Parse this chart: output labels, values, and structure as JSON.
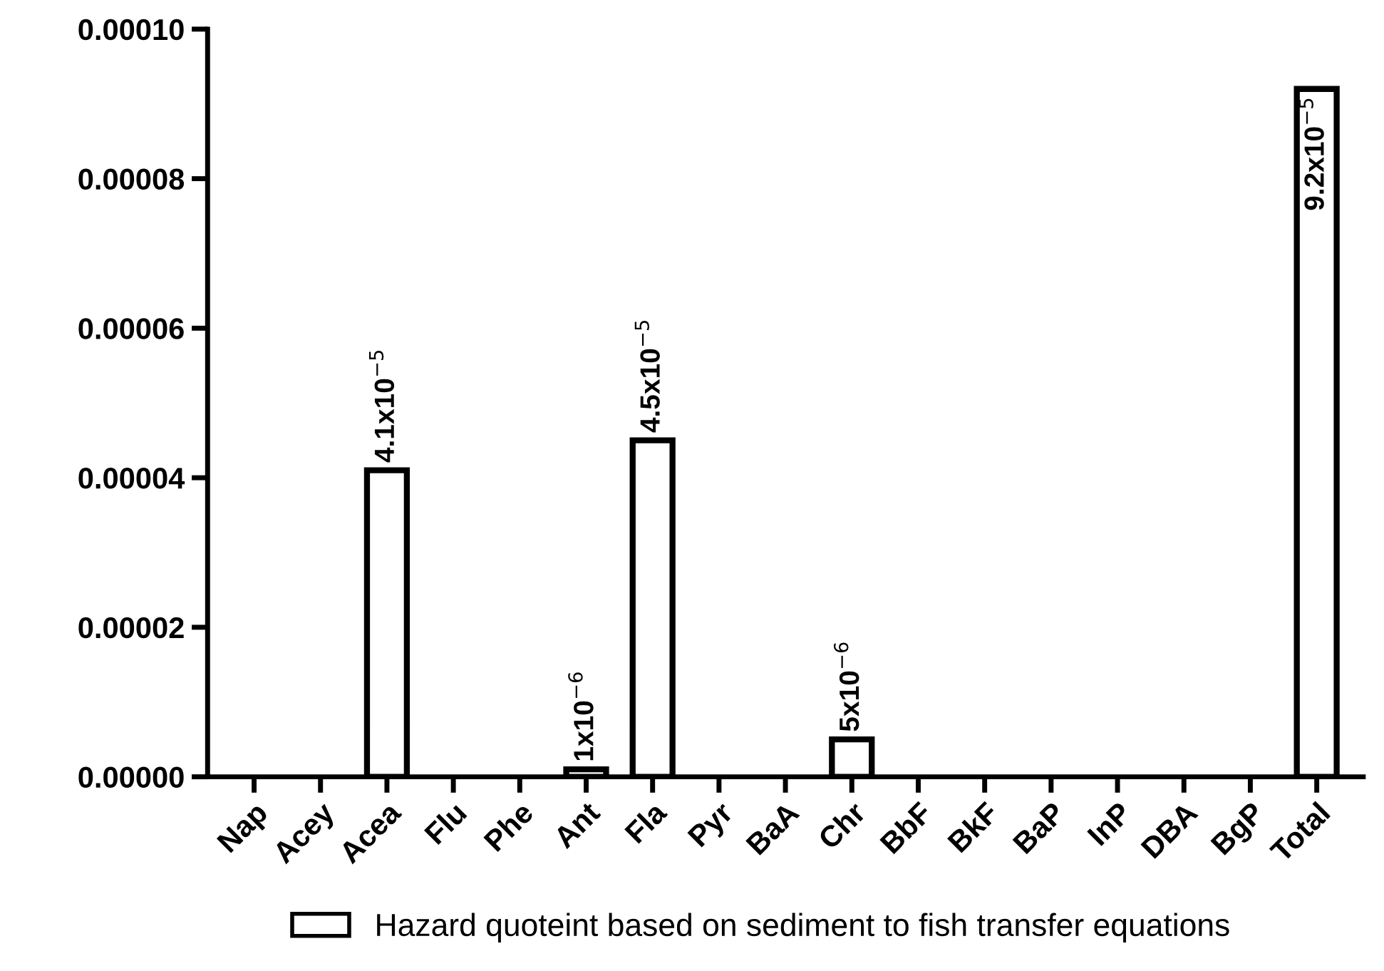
{
  "chart_data": {
    "type": "bar",
    "categories": [
      "Nap",
      "Acey",
      "Acea",
      "Flu",
      "Phe",
      "Ant",
      "Fla",
      "Pyr",
      "BaA",
      "Chr",
      "BbF",
      "BkF",
      "BaP",
      "InP",
      "DBA",
      "BgP",
      "Total"
    ],
    "series": [
      {
        "name": "Hazard quoteint based on sediment to fish transfer equations",
        "color": "#ffffff",
        "values": [
          0,
          0,
          4.1e-05,
          0,
          0,
          1e-06,
          4.5e-05,
          0,
          0,
          5e-06,
          0,
          0,
          0,
          0,
          0,
          0,
          9.2e-05
        ],
        "value_labels": [
          null,
          null,
          "4.1x10$^{−5}$",
          null,
          null,
          "1x10$^{−6}$",
          "4.5x10$^{−5}$",
          null,
          null,
          "5x10$^{−6}$",
          null,
          null,
          null,
          null,
          null,
          null,
          "9.2x10$^{−5}$"
        ]
      }
    ],
    "ylim": [
      0,
      0.0001
    ],
    "yticks": [
      {
        "value": 0,
        "label": "0.00000"
      },
      {
        "value": 2e-05,
        "label": "0.00002"
      },
      {
        "value": 4e-05,
        "label": "0.00004"
      },
      {
        "value": 6e-05,
        "label": "0.00006"
      },
      {
        "value": 8e-05,
        "label": "0.00008"
      },
      {
        "value": 0.0001,
        "label": "0.00010"
      }
    ],
    "grid": false,
    "legend": "bottom"
  }
}
